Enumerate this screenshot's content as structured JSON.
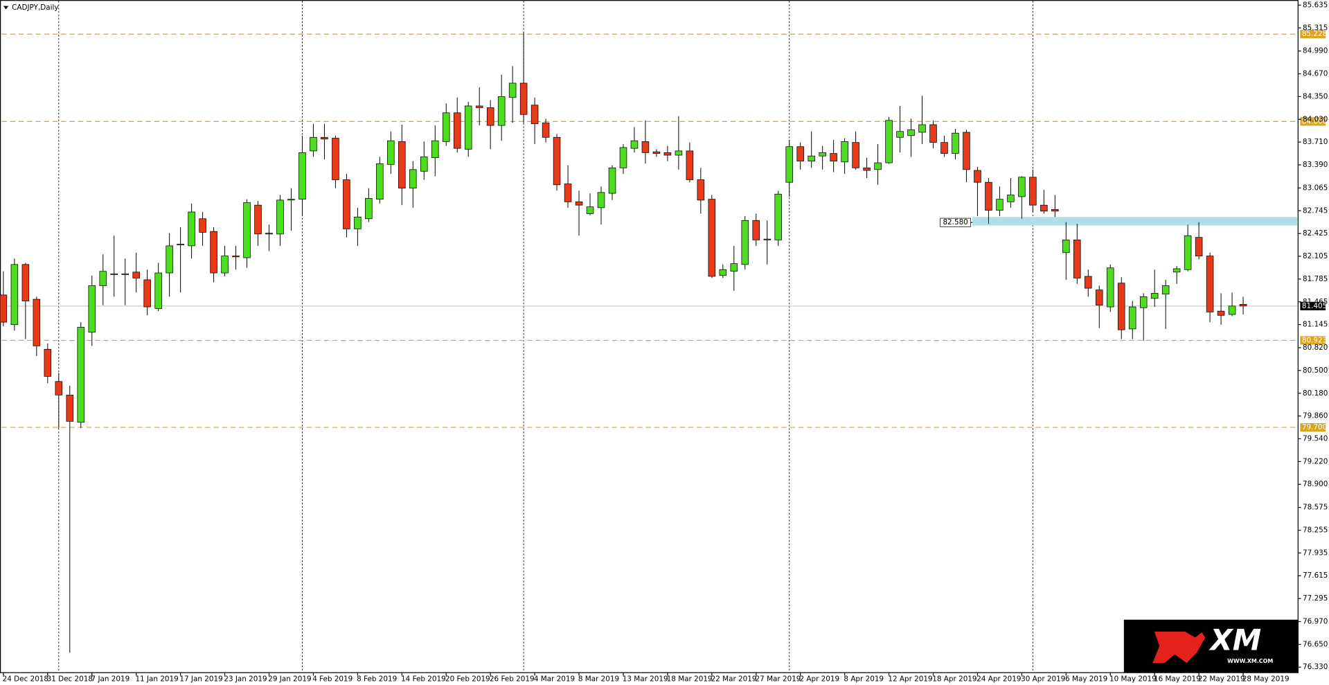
{
  "chart_data": {
    "type": "candlestick",
    "title": "CADJPY,Daily",
    "categories": [
      "24 Dec 2018",
      null,
      null,
      null,
      "31 Dec 2018",
      null,
      null,
      null,
      "7 Jan 2019",
      null,
      null,
      null,
      "11 Jan 2019",
      null,
      null,
      null,
      "17 Jan 2019",
      null,
      null,
      null,
      "23 Jan 2019",
      null,
      null,
      null,
      "29 Jan 2019",
      null,
      null,
      null,
      "4 Feb 2019",
      null,
      null,
      null,
      "8 Feb 2019",
      null,
      null,
      null,
      "14 Feb 2019",
      null,
      null,
      null,
      "20 Feb 2019",
      null,
      null,
      null,
      "26 Feb 2019",
      null,
      null,
      null,
      "4 Mar 2019",
      null,
      null,
      null,
      "8 Mar 2019",
      null,
      null,
      null,
      "13 Mar 2019",
      null,
      null,
      null,
      "18 Mar 2019",
      null,
      null,
      null,
      "22 Mar 2019",
      null,
      null,
      null,
      "27 Mar 2019",
      null,
      null,
      null,
      "2 Apr 2019",
      null,
      null,
      null,
      "8 Apr 2019",
      null,
      null,
      null,
      "12 Apr 2019",
      null,
      null,
      null,
      "18 Apr 2019",
      null,
      null,
      null,
      "24 Apr 2019",
      null,
      null,
      null,
      "30 Apr 2019",
      null,
      null,
      null,
      "6 May 2019",
      null,
      null,
      null,
      "10 May 2019",
      null,
      null,
      null,
      "16 May 2019",
      null,
      null,
      null,
      "22 May 2019",
      null,
      null,
      null,
      "28 May 2019"
    ],
    "open": [
      81.561,
      81.144,
      81.99,
      81.501,
      80.798,
      80.345,
      80.155,
      79.773,
      81.037,
      81.692,
      81.847,
      81.847,
      81.883,
      81.775,
      81.37,
      81.871,
      82.264,
      82.252,
      82.633,
      82.454,
      81.871,
      82.109,
      82.085,
      82.824,
      82.43,
      82.418,
      82.895,
      82.907,
      83.586,
      83.777,
      83.765,
      83.181,
      82.49,
      82.633,
      82.907,
      83.396,
      83.717,
      83.062,
      83.3,
      83.491,
      83.717,
      84.122,
      83.61,
      84.218,
      84.194,
      83.944,
      84.337,
      84.539,
      84.23,
      83.979,
      83.777,
      83.122,
      82.871,
      82.704,
      82.788,
      82.99,
      83.348,
      83.622,
      83.717,
      83.574,
      83.562,
      83.526,
      83.586,
      83.181,
      82.907,
      81.835,
      81.894,
      81.99,
      82.609,
      82.347,
      82.335,
      83.145,
      83.646,
      83.443,
      83.515,
      83.55,
      83.431,
      83.705,
      83.348,
      83.324,
      83.419,
      83.777,
      83.801,
      83.848,
      83.955,
      83.705,
      83.55,
      83.848,
      83.312,
      83.145,
      82.752,
      82.871,
      82.943,
      83.217,
      82.824,
      82.764,
      82.156,
      82.335,
      81.823,
      81.632,
      81.394,
      81.728,
      81.084,
      81.382,
      81.513,
      81.573,
      81.883,
      81.918,
      82.371,
      82.109,
      81.334,
      81.287,
      81.43
    ],
    "high": [
      81.894,
      82.073,
      82.013,
      81.537,
      80.881,
      80.465,
      80.286,
      81.179,
      81.835,
      82.132,
      82.395,
      82.073,
      82.156,
      81.918,
      82.013,
      82.43,
      82.514,
      82.847,
      82.728,
      82.514,
      82.252,
      82.252,
      82.907,
      82.883,
      82.549,
      82.967,
      83.062,
      83.801,
      83.967,
      83.967,
      83.801,
      83.264,
      82.788,
      83.062,
      83.503,
      83.86,
      83.955,
      83.443,
      83.717,
      83.944,
      84.253,
      84.337,
      84.277,
      84.48,
      84.301,
      84.658,
      84.778,
      85.254,
      84.337,
      84.039,
      83.824,
      83.384,
      83.026,
      82.99,
      83.086,
      83.384,
      83.682,
      83.92,
      84.015,
      83.61,
      83.658,
      84.075,
      83.705,
      83.348,
      82.967,
      81.99,
      82.252,
      82.669,
      82.704,
      82.609,
      83.026,
      83.741,
      83.705,
      83.86,
      83.658,
      83.741,
      83.765,
      83.86,
      83.491,
      83.682,
      84.063,
      84.218,
      84.039,
      84.361,
      84.015,
      83.801,
      83.896,
      83.884,
      83.36,
      83.205,
      83.086,
      83.205,
      83.229,
      83.324,
      83.038,
      82.967,
      82.585,
      82.561,
      81.918,
      81.692,
      81.99,
      81.811,
      81.477,
      81.585,
      81.918,
      81.775,
      81.966,
      82.549,
      82.585,
      82.156,
      81.585,
      81.596,
      81.537
    ],
    "low": [
      81.12,
      81.06,
      80.941,
      80.703,
      80.321,
      79.69,
      76.532,
      79.69,
      80.846,
      81.418,
      81.537,
      81.418,
      81.596,
      81.275,
      81.334,
      81.537,
      81.596,
      82.073,
      82.252,
      81.74,
      81.823,
      81.918,
      81.942,
      82.252,
      82.18,
      82.252,
      82.466,
      82.669,
      83.503,
      83.467,
      83.062,
      82.371,
      82.252,
      82.585,
      82.847,
      83.264,
      82.824,
      82.788,
      83.181,
      83.229,
      83.658,
      83.562,
      83.503,
      83.944,
      83.61,
      83.729,
      83.979,
      83.979,
      83.682,
      83.705,
      83.026,
      82.788,
      82.395,
      82.681,
      82.549,
      82.895,
      83.264,
      83.562,
      83.407,
      83.503,
      83.443,
      83.324,
      83.145,
      82.704,
      81.799,
      81.799,
      81.62,
      81.918,
      82.252,
      81.99,
      82.252,
      82.943,
      83.324,
      83.348,
      83.324,
      83.288,
      83.264,
      83.324,
      83.205,
      83.11,
      83.407,
      83.562,
      83.503,
      83.682,
      83.622,
      83.503,
      83.467,
      83.145,
      82.669,
      82.561,
      82.669,
      82.788,
      82.633,
      82.728,
      82.704,
      82.657,
      81.775,
      81.716,
      81.537,
      81.096,
      81.322,
      80.941,
      80.941,
      80.917,
      81.394,
      81.084,
      81.716,
      81.894,
      82.061,
      81.179,
      81.144,
      81.263,
      81.287
    ],
    "close": [
      81.179,
      81.99,
      81.477,
      80.846,
      80.417,
      80.155,
      79.785,
      81.108,
      81.692,
      81.894,
      81.859,
      81.859,
      81.799,
      81.394,
      81.871,
      82.252,
      82.276,
      82.728,
      82.442,
      81.871,
      82.109,
      82.097,
      82.859,
      82.418,
      82.418,
      82.895,
      82.907,
      83.562,
      83.777,
      83.753,
      83.181,
      82.49,
      82.657,
      82.919,
      83.407,
      83.729,
      83.062,
      83.324,
      83.503,
      83.729,
      84.122,
      83.622,
      84.218,
      84.194,
      83.944,
      84.349,
      84.539,
      84.098,
      83.967,
      83.777,
      83.11,
      82.871,
      82.824,
      82.8,
      83.002,
      83.348,
      83.634,
      83.729,
      83.562,
      83.55,
      83.526,
      83.586,
      83.181,
      82.895,
      81.823,
      81.918,
      82.002,
      82.609,
      82.335,
      82.335,
      82.979,
      83.646,
      83.443,
      83.515,
      83.562,
      83.443,
      83.717,
      83.348,
      83.312,
      83.419,
      84.015,
      83.86,
      83.884,
      83.955,
      83.705,
      83.55,
      83.836,
      83.324,
      83.145,
      82.752,
      82.907,
      82.967,
      83.217,
      82.824,
      82.74,
      82.74,
      82.335,
      81.799,
      81.656,
      81.418,
      81.942,
      81.072,
      81.394,
      81.537,
      81.585,
      81.692,
      81.93,
      82.395,
      82.109,
      81.322,
      81.275,
      81.406,
      81.406
    ],
    "up_color": "#4ddc1f",
    "down_color": "#e83a18",
    "ylim": [
      76.33,
      85.635
    ],
    "yticks": [
      85.635,
      85.315,
      {
        "value": 84.99,
        "label": "84.990"
      },
      {
        "value": 84.67,
        "label": "84.670"
      },
      {
        "value": 84.35,
        "label": "84.350"
      },
      {
        "value": 84.03,
        "label": "84.030"
      },
      {
        "value": 83.71,
        "label": "83.710"
      },
      {
        "value": 83.39,
        "label": "83.390"
      },
      83.065,
      82.745,
      82.425,
      82.105,
      81.785,
      81.465,
      81.145,
      {
        "value": 80.82,
        "label": "80.820"
      },
      {
        "value": 80.5,
        "label": "80.500"
      },
      {
        "value": 80.18,
        "label": "80.180"
      },
      {
        "value": 79.86,
        "label": "79.860"
      },
      {
        "value": 79.54,
        "label": "79.540"
      },
      {
        "value": 79.22,
        "label": "79.220"
      },
      {
        "value": 78.9,
        "label": "78.900"
      },
      78.575,
      78.255,
      77.935,
      77.615,
      77.295,
      {
        "value": 76.97,
        "label": "76.970"
      },
      {
        "value": 76.65,
        "label": "76.650"
      },
      {
        "value": 76.33,
        "label": "76.330"
      }
    ],
    "levels": [
      85.228,
      {
        "value": 84.0,
        "label": "84.000"
      },
      80.923,
      {
        "value": 79.7,
        "label": "79.700"
      }
    ],
    "level_color": "#daa520",
    "current_price": 81.405,
    "zone": {
      "value": {
        "value": 82.58,
        "label": "82.580"
      },
      "top": 82.657,
      "bottom": 82.538,
      "color": "#b0e0e6"
    },
    "grid": false
  },
  "watermark": {
    "brand": "XM",
    "url": "WWW.XM.COM"
  }
}
